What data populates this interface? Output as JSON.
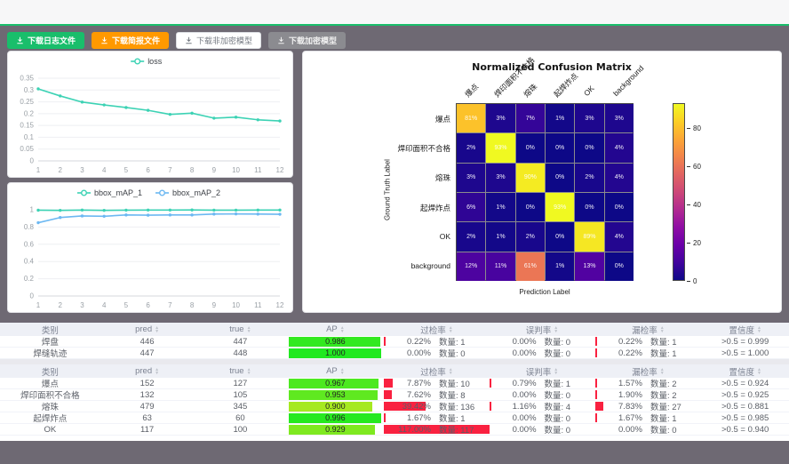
{
  "page": {
    "bg": "#6e6973",
    "accent_green": "#19be6b"
  },
  "toolbar": {
    "buttons": [
      {
        "name": "download-log-button",
        "label": "下载日志文件",
        "style": "green",
        "icon": "download-icon"
      },
      {
        "name": "download-report-button",
        "label": "下载简报文件",
        "style": "orange",
        "icon": "download-icon"
      },
      {
        "name": "download-unencrypted-model-button",
        "label": "下载非加密模型",
        "style": "plain",
        "icon": "download-icon"
      },
      {
        "name": "download-encrypted-model-button",
        "label": "下载加密模型",
        "style": "gray",
        "icon": "download-icon"
      }
    ]
  },
  "chart_data": [
    {
      "id": "loss",
      "type": "line",
      "title": "",
      "legend_position": "top",
      "grid": true,
      "x": [
        1,
        2,
        3,
        4,
        5,
        6,
        7,
        8,
        9,
        10,
        11,
        12
      ],
      "ylim": [
        0,
        0.35
      ],
      "yticks": [
        0,
        0.05,
        0.1,
        0.15,
        0.2,
        0.25,
        0.3,
        0.35
      ],
      "series": [
        {
          "name": "loss",
          "color": "#3cd2b4",
          "values": [
            0.305,
            0.275,
            0.249,
            0.237,
            0.226,
            0.214,
            0.197,
            0.202,
            0.181,
            0.185,
            0.174,
            0.169
          ]
        }
      ]
    },
    {
      "id": "bbox_map",
      "type": "line",
      "title": "",
      "legend_position": "top",
      "grid": true,
      "x": [
        1,
        2,
        3,
        4,
        5,
        6,
        7,
        8,
        9,
        10,
        11,
        12
      ],
      "ylim": [
        0,
        1
      ],
      "yticks": [
        0,
        0.2,
        0.4,
        0.6,
        0.8,
        1
      ],
      "series": [
        {
          "name": "bbox_mAP_1",
          "color": "#3cd2b4",
          "values": [
            0.995,
            0.993,
            0.997,
            0.993,
            0.996,
            0.997,
            0.997,
            0.998,
            0.996,
            0.996,
            0.997,
            0.997
          ]
        },
        {
          "name": "bbox_mAP_2",
          "color": "#6cb8f2",
          "values": [
            0.85,
            0.91,
            0.928,
            0.925,
            0.94,
            0.937,
            0.94,
            0.94,
            0.95,
            0.952,
            0.95,
            0.948
          ]
        }
      ]
    },
    {
      "id": "confusion_matrix",
      "type": "heatmap",
      "title": "Normalized Confusion Matrix",
      "xlabel": "Prediction Label",
      "ylabel": "Ground Truth Label",
      "labels": [
        "爆点",
        "焊印面积不合格",
        "熔珠",
        "起焊炸点",
        "OK",
        "background"
      ],
      "unit": "%",
      "matrix": [
        [
          81,
          3,
          7,
          1,
          3,
          3
        ],
        [
          2,
          93,
          0,
          0,
          0,
          4
        ],
        [
          3,
          3,
          90,
          0,
          2,
          4
        ],
        [
          6,
          1,
          0,
          93,
          0,
          0
        ],
        [
          2,
          1,
          2,
          0,
          89,
          4
        ],
        [
          12,
          11,
          61,
          1,
          13,
          0
        ]
      ],
      "colorbar": {
        "ticks": [
          0,
          20,
          40,
          60,
          80
        ],
        "vmax": 93,
        "colormap": "plasma"
      }
    }
  ],
  "tables": [
    {
      "headers": [
        {
          "label": "类别",
          "sortable": false
        },
        {
          "label": "pred",
          "sortable": true
        },
        {
          "label": "true",
          "sortable": true
        },
        {
          "label": "AP",
          "sortable": true
        },
        {
          "label": "过检率",
          "sortable": true
        },
        {
          "label": "误判率",
          "sortable": true
        },
        {
          "label": "漏检率",
          "sortable": true
        },
        {
          "label": "置信度",
          "sortable": true
        }
      ],
      "rows": [
        {
          "label": "焊盘",
          "pred": "446",
          "true": "447",
          "ap": "0.986",
          "over": {
            "pct": "0.22%",
            "count": "数量: 1"
          },
          "mis": {
            "pct": "0.00%",
            "count": "数量: 0"
          },
          "miss": {
            "pct": "0.22%",
            "count": "数量: 1"
          },
          "conf": ">0.5 = 0.999"
        },
        {
          "label": "焊缝轨迹",
          "pred": "447",
          "true": "448",
          "ap": "1.000",
          "over": {
            "pct": "0.00%",
            "count": "数量: 0"
          },
          "mis": {
            "pct": "0.00%",
            "count": "数量: 0"
          },
          "miss": {
            "pct": "0.22%",
            "count": "数量: 1"
          },
          "conf": ">0.5 = 1.000"
        }
      ]
    },
    {
      "headers": [
        {
          "label": "类别",
          "sortable": false
        },
        {
          "label": "pred",
          "sortable": true
        },
        {
          "label": "true",
          "sortable": true
        },
        {
          "label": "AP",
          "sortable": true
        },
        {
          "label": "过检率",
          "sortable": true
        },
        {
          "label": "误判率",
          "sortable": true
        },
        {
          "label": "漏检率",
          "sortable": true
        },
        {
          "label": "置信度",
          "sortable": true
        }
      ],
      "rows": [
        {
          "label": "爆点",
          "pred": "152",
          "true": "127",
          "ap": "0.967",
          "over": {
            "pct": "7.87%",
            "count": "数量: 10"
          },
          "mis": {
            "pct": "0.79%",
            "count": "数量: 1"
          },
          "miss": {
            "pct": "1.57%",
            "count": "数量: 2"
          },
          "conf": ">0.5 = 0.924"
        },
        {
          "label": "焊印面积不合格",
          "pred": "132",
          "true": "105",
          "ap": "0.953",
          "over": {
            "pct": "7.62%",
            "count": "数量: 8"
          },
          "mis": {
            "pct": "0.00%",
            "count": "数量: 0"
          },
          "miss": {
            "pct": "1.90%",
            "count": "数量: 2"
          },
          "conf": ">0.5 = 0.925"
        },
        {
          "label": "熔珠",
          "pred": "479",
          "true": "345",
          "ap": "0.900",
          "over": {
            "pct": "39.42%",
            "count": "数量: 136"
          },
          "mis": {
            "pct": "1.16%",
            "count": "数量: 4"
          },
          "miss": {
            "pct": "7.83%",
            "count": "数量: 27"
          },
          "conf": ">0.5 = 0.881"
        },
        {
          "label": "起焊炸点",
          "pred": "63",
          "true": "60",
          "ap": "0.996",
          "over": {
            "pct": "1.67%",
            "count": "数量: 1"
          },
          "mis": {
            "pct": "0.00%",
            "count": "数量: 0"
          },
          "miss": {
            "pct": "1.67%",
            "count": "数量: 1"
          },
          "conf": ">0.5 = 0.985"
        },
        {
          "label": "OK",
          "pred": "117",
          "true": "100",
          "ap": "0.929",
          "over": {
            "pct": "117.00%",
            "count": "数量: 117"
          },
          "mis": {
            "pct": "0.00%",
            "count": "数量: 0"
          },
          "miss": {
            "pct": "0.00%",
            "count": "数量: 0"
          },
          "conf": ">0.5 = 0.940"
        }
      ]
    }
  ]
}
